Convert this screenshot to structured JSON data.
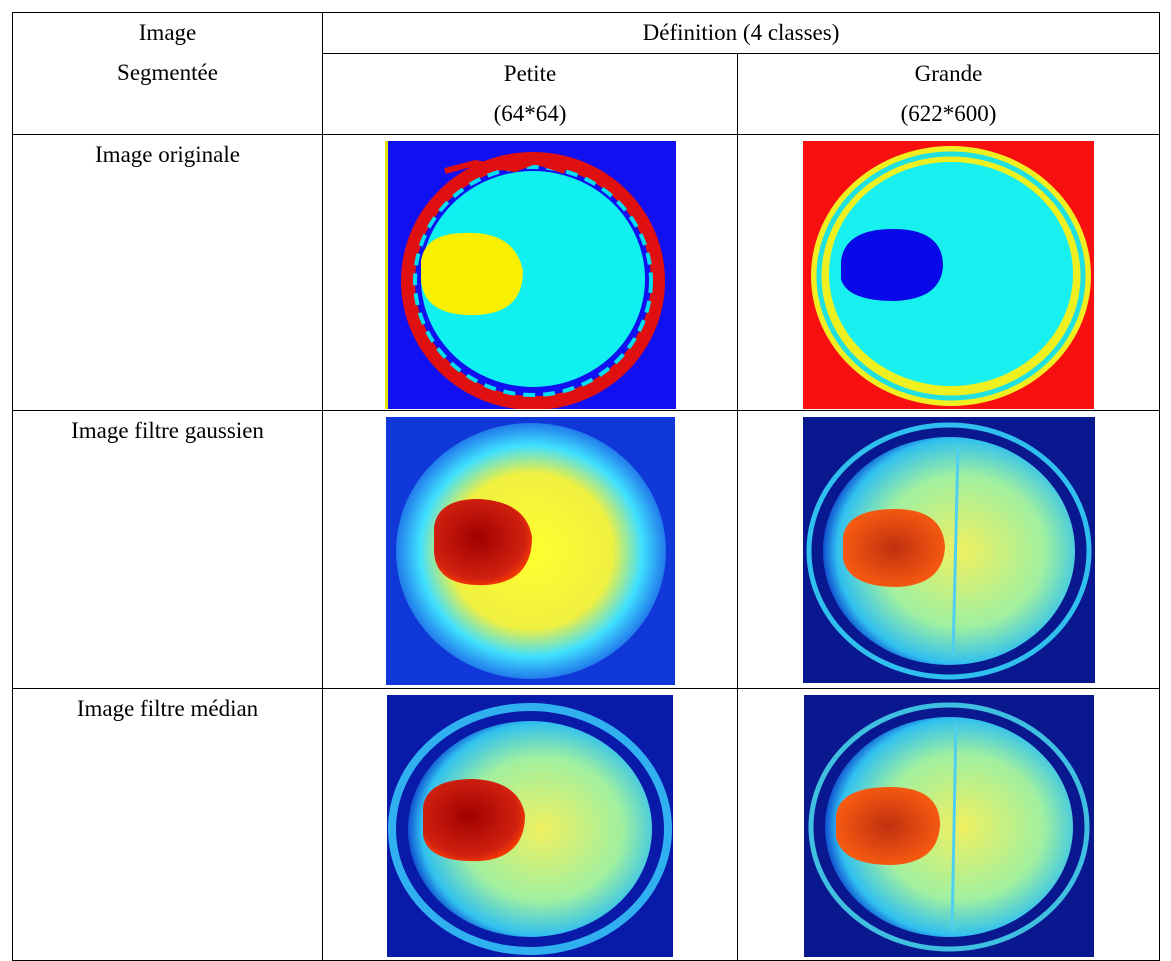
{
  "table": {
    "corner": [
      "Image",
      "Segmentée"
    ],
    "group_header": "Définition (4 classes)",
    "columns": [
      [
        "Petite",
        "(64*64)"
      ],
      [
        "Grande",
        "(622*600)"
      ]
    ],
    "rows": [
      "Image originale",
      "Image filtre gaussien",
      "Image filtre médian"
    ]
  }
}
